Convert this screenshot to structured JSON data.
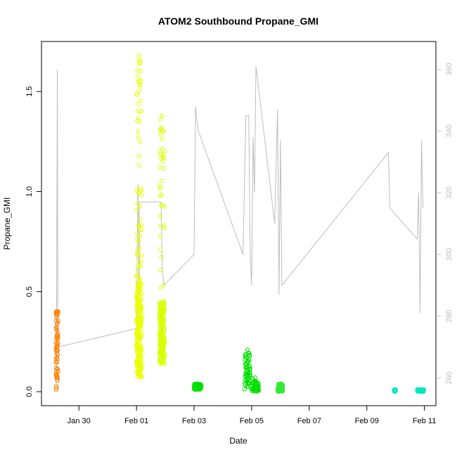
{
  "chart_data": {
    "type": "scatter",
    "title": "ATOM2 Southbound Propane_GMI",
    "xlabel": "Date",
    "ylabel": "Propane_GMI",
    "x_ticks": [
      "Jan 30",
      "Feb 01",
      "Feb 03",
      "Feb 05",
      "Feb 07",
      "Feb 09",
      "Feb 11"
    ],
    "x_tick_days": [
      30,
      32,
      34,
      36,
      38,
      40,
      42
    ],
    "xlim": [
      28.7,
      42.4
    ],
    "ylim": [
      -0.07,
      1.75
    ],
    "y_ticks": [
      "0.0",
      "0.5",
      "1.0",
      "1.5"
    ],
    "y_tick_values": [
      0.0,
      0.5,
      1.0,
      1.5
    ],
    "y2lim": [
      251,
      369
    ],
    "y2_ticks": [
      "260",
      "280",
      "300",
      "320",
      "340",
      "360"
    ],
    "y2_tick_values": [
      260,
      280,
      300,
      320,
      340,
      360
    ],
    "grid": false,
    "legend": "none",
    "colors": {
      "orange": "#ff8000",
      "yellow": "#eaff00",
      "lime": "#d8ff00",
      "green": "#00e000",
      "green2": "#33e833",
      "cyan": "#00e8c0",
      "gray_line": "#bdbdbd"
    },
    "series": [
      {
        "color_key": "orange",
        "segments": [
          {
            "x": [
              29.2,
              29.28
            ],
            "ymin": 0.01,
            "ymax": 0.4,
            "dense_max": 0.4
          }
        ]
      },
      {
        "color_key": "yellow",
        "segments": [
          {
            "x": [
              32.0,
              32.18
            ],
            "ymin": 0.07,
            "ymax": 1.68,
            "dense_max": 0.55
          }
        ]
      },
      {
        "color_key": "lime",
        "segments": [
          {
            "x": [
              32.8,
              32.98
            ],
            "ymin": 0.14,
            "ymax": 1.38,
            "dense_max": 0.45
          }
        ]
      },
      {
        "color_key": "green",
        "segments": [
          {
            "x": [
              34.0,
              34.25
            ],
            "ymin": 0.01,
            "ymax": 0.04,
            "dense_max": 0.03
          },
          {
            "x": [
              35.75,
              35.95
            ],
            "ymin": 0.01,
            "ymax": 0.21,
            "dense_max": 0.15
          },
          {
            "x": [
              36.0,
              36.25
            ],
            "ymin": 0.0,
            "ymax": 0.07,
            "dense_max": 0.03
          }
        ]
      },
      {
        "color_key": "green2",
        "segments": [
          {
            "x": [
              36.9,
              37.1
            ],
            "ymin": 0.0,
            "ymax": 0.04,
            "dense_max": 0.02
          }
        ]
      },
      {
        "color_key": "cyan",
        "segments": [
          {
            "x": [
              40.95,
              41.0
            ],
            "ymin": 0.0,
            "ymax": 0.01,
            "dense_max": 0.01
          },
          {
            "x": [
              41.75,
              42.0
            ],
            "ymin": 0.0,
            "ymax": 0.01,
            "dense_max": 0.01
          }
        ]
      }
    ],
    "secondary_line": {
      "color_key": "gray_line",
      "description_points": [
        [
          29.22,
          262
        ],
        [
          29.25,
          360
        ],
        [
          29.27,
          270
        ],
        [
          32.0,
          276
        ],
        [
          32.05,
          323
        ],
        [
          32.1,
          280
        ],
        [
          32.1,
          317
        ],
        [
          32.85,
          317
        ],
        [
          32.9,
          295
        ],
        [
          32.95,
          290
        ],
        [
          34.0,
          300
        ],
        [
          34.05,
          348
        ],
        [
          34.1,
          343
        ],
        [
          34.15,
          340
        ],
        [
          35.7,
          300
        ],
        [
          35.8,
          345
        ],
        [
          35.9,
          345
        ],
        [
          35.95,
          300
        ],
        [
          36.0,
          290
        ],
        [
          36.05,
          338
        ],
        [
          36.1,
          320
        ],
        [
          36.15,
          361
        ],
        [
          36.8,
          310
        ],
        [
          36.9,
          347
        ],
        [
          36.95,
          287
        ],
        [
          37.0,
          337
        ],
        [
          37.05,
          290
        ],
        [
          40.75,
          333
        ],
        [
          40.8,
          315
        ],
        [
          41.75,
          305
        ],
        [
          41.8,
          320
        ],
        [
          41.85,
          281
        ],
        [
          41.9,
          337
        ],
        [
          41.95,
          315
        ]
      ]
    }
  }
}
